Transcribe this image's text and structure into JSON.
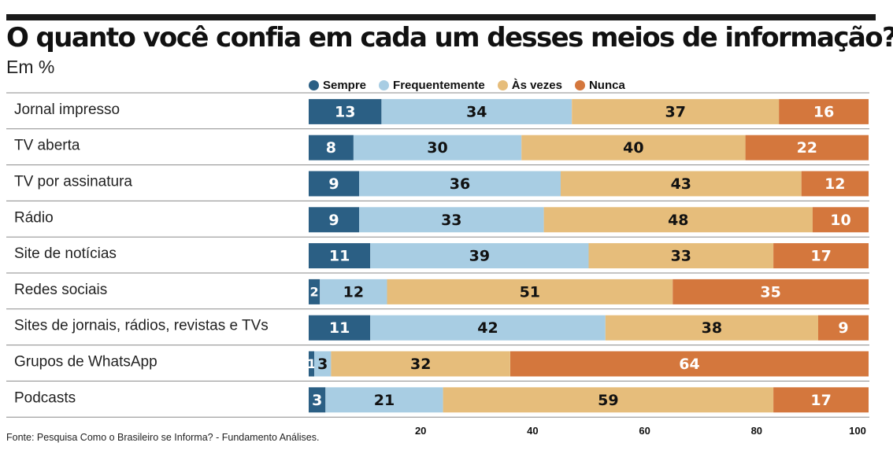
{
  "chart_data": {
    "type": "bar",
    "orientation": "horizontal",
    "stacked": true,
    "title": "O quanto você confia em cada um desses meios de informação?",
    "subtitle": "Em %",
    "categories": [
      "Jornal impresso",
      "TV aberta",
      "TV por assinatura",
      "Rádio",
      "Site de notícias",
      "Redes sociais",
      "Sites de jornais, rádios, revistas e TVs",
      "Grupos de WhatsApp",
      "Podcasts"
    ],
    "series": [
      {
        "name": "Sempre",
        "color": "#2b5f84",
        "values": [
          13,
          8,
          9,
          9,
          11,
          2,
          11,
          1,
          3
        ]
      },
      {
        "name": "Frequentemente",
        "color": "#a8cde3",
        "values": [
          34,
          30,
          36,
          33,
          39,
          12,
          42,
          3,
          21
        ]
      },
      {
        "name": "Às vezes",
        "color": "#e6bd7b",
        "values": [
          37,
          40,
          43,
          48,
          33,
          51,
          38,
          32,
          59
        ]
      },
      {
        "name": "Nunca",
        "color": "#d4773d",
        "values": [
          16,
          22,
          12,
          10,
          17,
          35,
          9,
          64,
          17
        ]
      }
    ],
    "x_ticks": [
      20,
      40,
      60,
      80,
      100
    ],
    "xlim": [
      0,
      100
    ],
    "legend_position": "top"
  },
  "source": "Fonte: Pesquisa Como o Brasileiro se Informa? - Fundamento Análises."
}
